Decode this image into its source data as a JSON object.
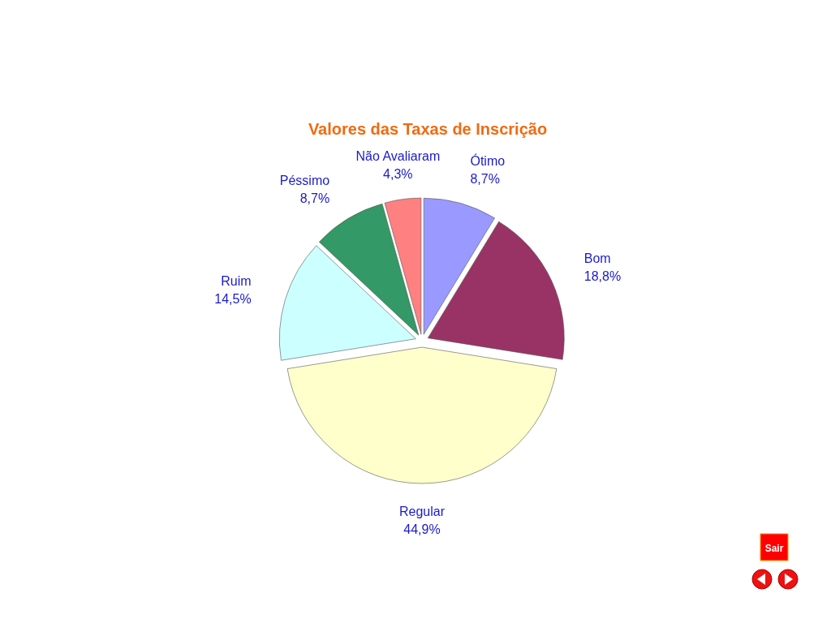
{
  "chart_data": {
    "type": "pie",
    "title": "Valores das Taxas de Inscrição",
    "categories": [
      "Ótimo",
      "Bom",
      "Regular",
      "Ruim",
      "Péssimo",
      "Não Avaliaram"
    ],
    "values": [
      8.7,
      18.8,
      44.9,
      14.5,
      8.7,
      4.3
    ],
    "value_labels": [
      "8,7%",
      "18,8%",
      "44,9%",
      "14,5%",
      "8,7%",
      "4,3%"
    ],
    "colors": [
      "#9999ff",
      "#993366",
      "#ffffcc",
      "#ccffff",
      "#339966",
      "#ff8080"
    ],
    "legend": false,
    "annotations": [
      "Sair"
    ]
  }
}
